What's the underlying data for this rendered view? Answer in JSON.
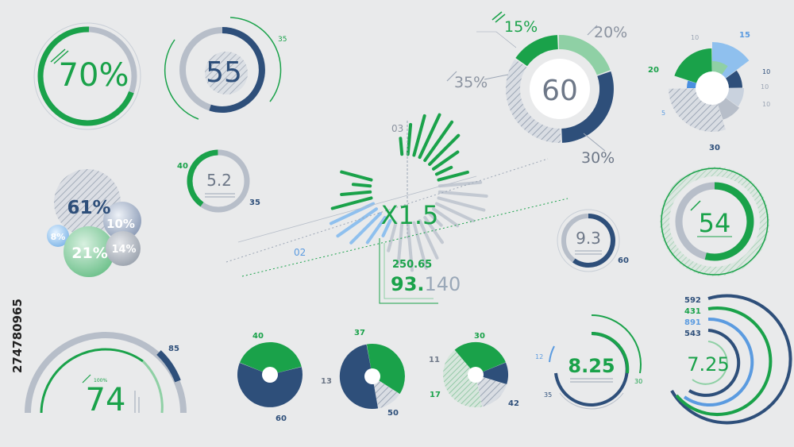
{
  "colors": {
    "green": "#1aa24a",
    "light_green": "#8fd0a5",
    "navy": "#2e4f7a",
    "mid_blue": "#5b82b4",
    "light_blue": "#8fc0ee",
    "gray": "#b7bec9",
    "text_gray": "#8b93a0",
    "hatch": "#9ca6b5"
  },
  "stock_id": "274780965",
  "chart_data": [
    {
      "id": "gauge-70",
      "type": "gauge",
      "label": "70%",
      "percent": 70
    },
    {
      "id": "gauge-55",
      "type": "gauge",
      "label": "55",
      "outer_label": "35",
      "percent": 55
    },
    {
      "id": "gauge-5-2",
      "type": "gauge",
      "label": "5.2",
      "left_label": "40",
      "right_label": "35",
      "percent": 40
    },
    {
      "id": "bubbles",
      "type": "bubble",
      "labels": [
        "61%",
        "10%",
        "8%",
        "21%",
        "14%"
      ],
      "values": [
        61,
        10,
        8,
        21,
        14
      ]
    },
    {
      "id": "radial-x1-5",
      "type": "radial-bars",
      "label": "X1.5",
      "tick_labels": [
        "03",
        "02"
      ],
      "value_small": "250.65",
      "value_big": "93.",
      "value_big_dec": "140"
    },
    {
      "id": "donut-60",
      "type": "pie",
      "center_label": "60",
      "labels": [
        "15%",
        "20%",
        "30%",
        "35%"
      ],
      "values": [
        15,
        20,
        30,
        35
      ]
    },
    {
      "id": "rose",
      "type": "pie",
      "labels": [
        "15",
        "10",
        "10",
        "10",
        "30",
        "5",
        "20",
        "10"
      ],
      "values": [
        15,
        10,
        10,
        10,
        30,
        5,
        20,
        10
      ]
    },
    {
      "id": "gauge-9-3",
      "type": "gauge",
      "label": "9.3",
      "outer_label": "60",
      "percent": 60
    },
    {
      "id": "gauge-54",
      "type": "gauge",
      "label": "54",
      "percent": 54
    },
    {
      "id": "arc-74",
      "type": "arc-gauge",
      "label": "74",
      "top_label": "85",
      "small_label": "100%"
    },
    {
      "id": "pie-40-60",
      "type": "pie",
      "labels": [
        "40",
        "60"
      ],
      "values": [
        40,
        60
      ]
    },
    {
      "id": "pie-37-13-50",
      "type": "pie",
      "labels": [
        "37",
        "13",
        "50"
      ],
      "values": [
        37,
        13,
        50
      ]
    },
    {
      "id": "pie-30-11-17-42",
      "type": "pie",
      "labels": [
        "30",
        "11",
        "17",
        "42"
      ],
      "values": [
        30,
        11,
        17,
        42
      ]
    },
    {
      "id": "gauge-8-25",
      "type": "gauge",
      "label": "8.25",
      "labels": [
        "12",
        "35",
        "30"
      ]
    },
    {
      "id": "rings-7-25",
      "type": "rings",
      "label": "7.25",
      "values": [
        592,
        431,
        891,
        543
      ]
    }
  ]
}
